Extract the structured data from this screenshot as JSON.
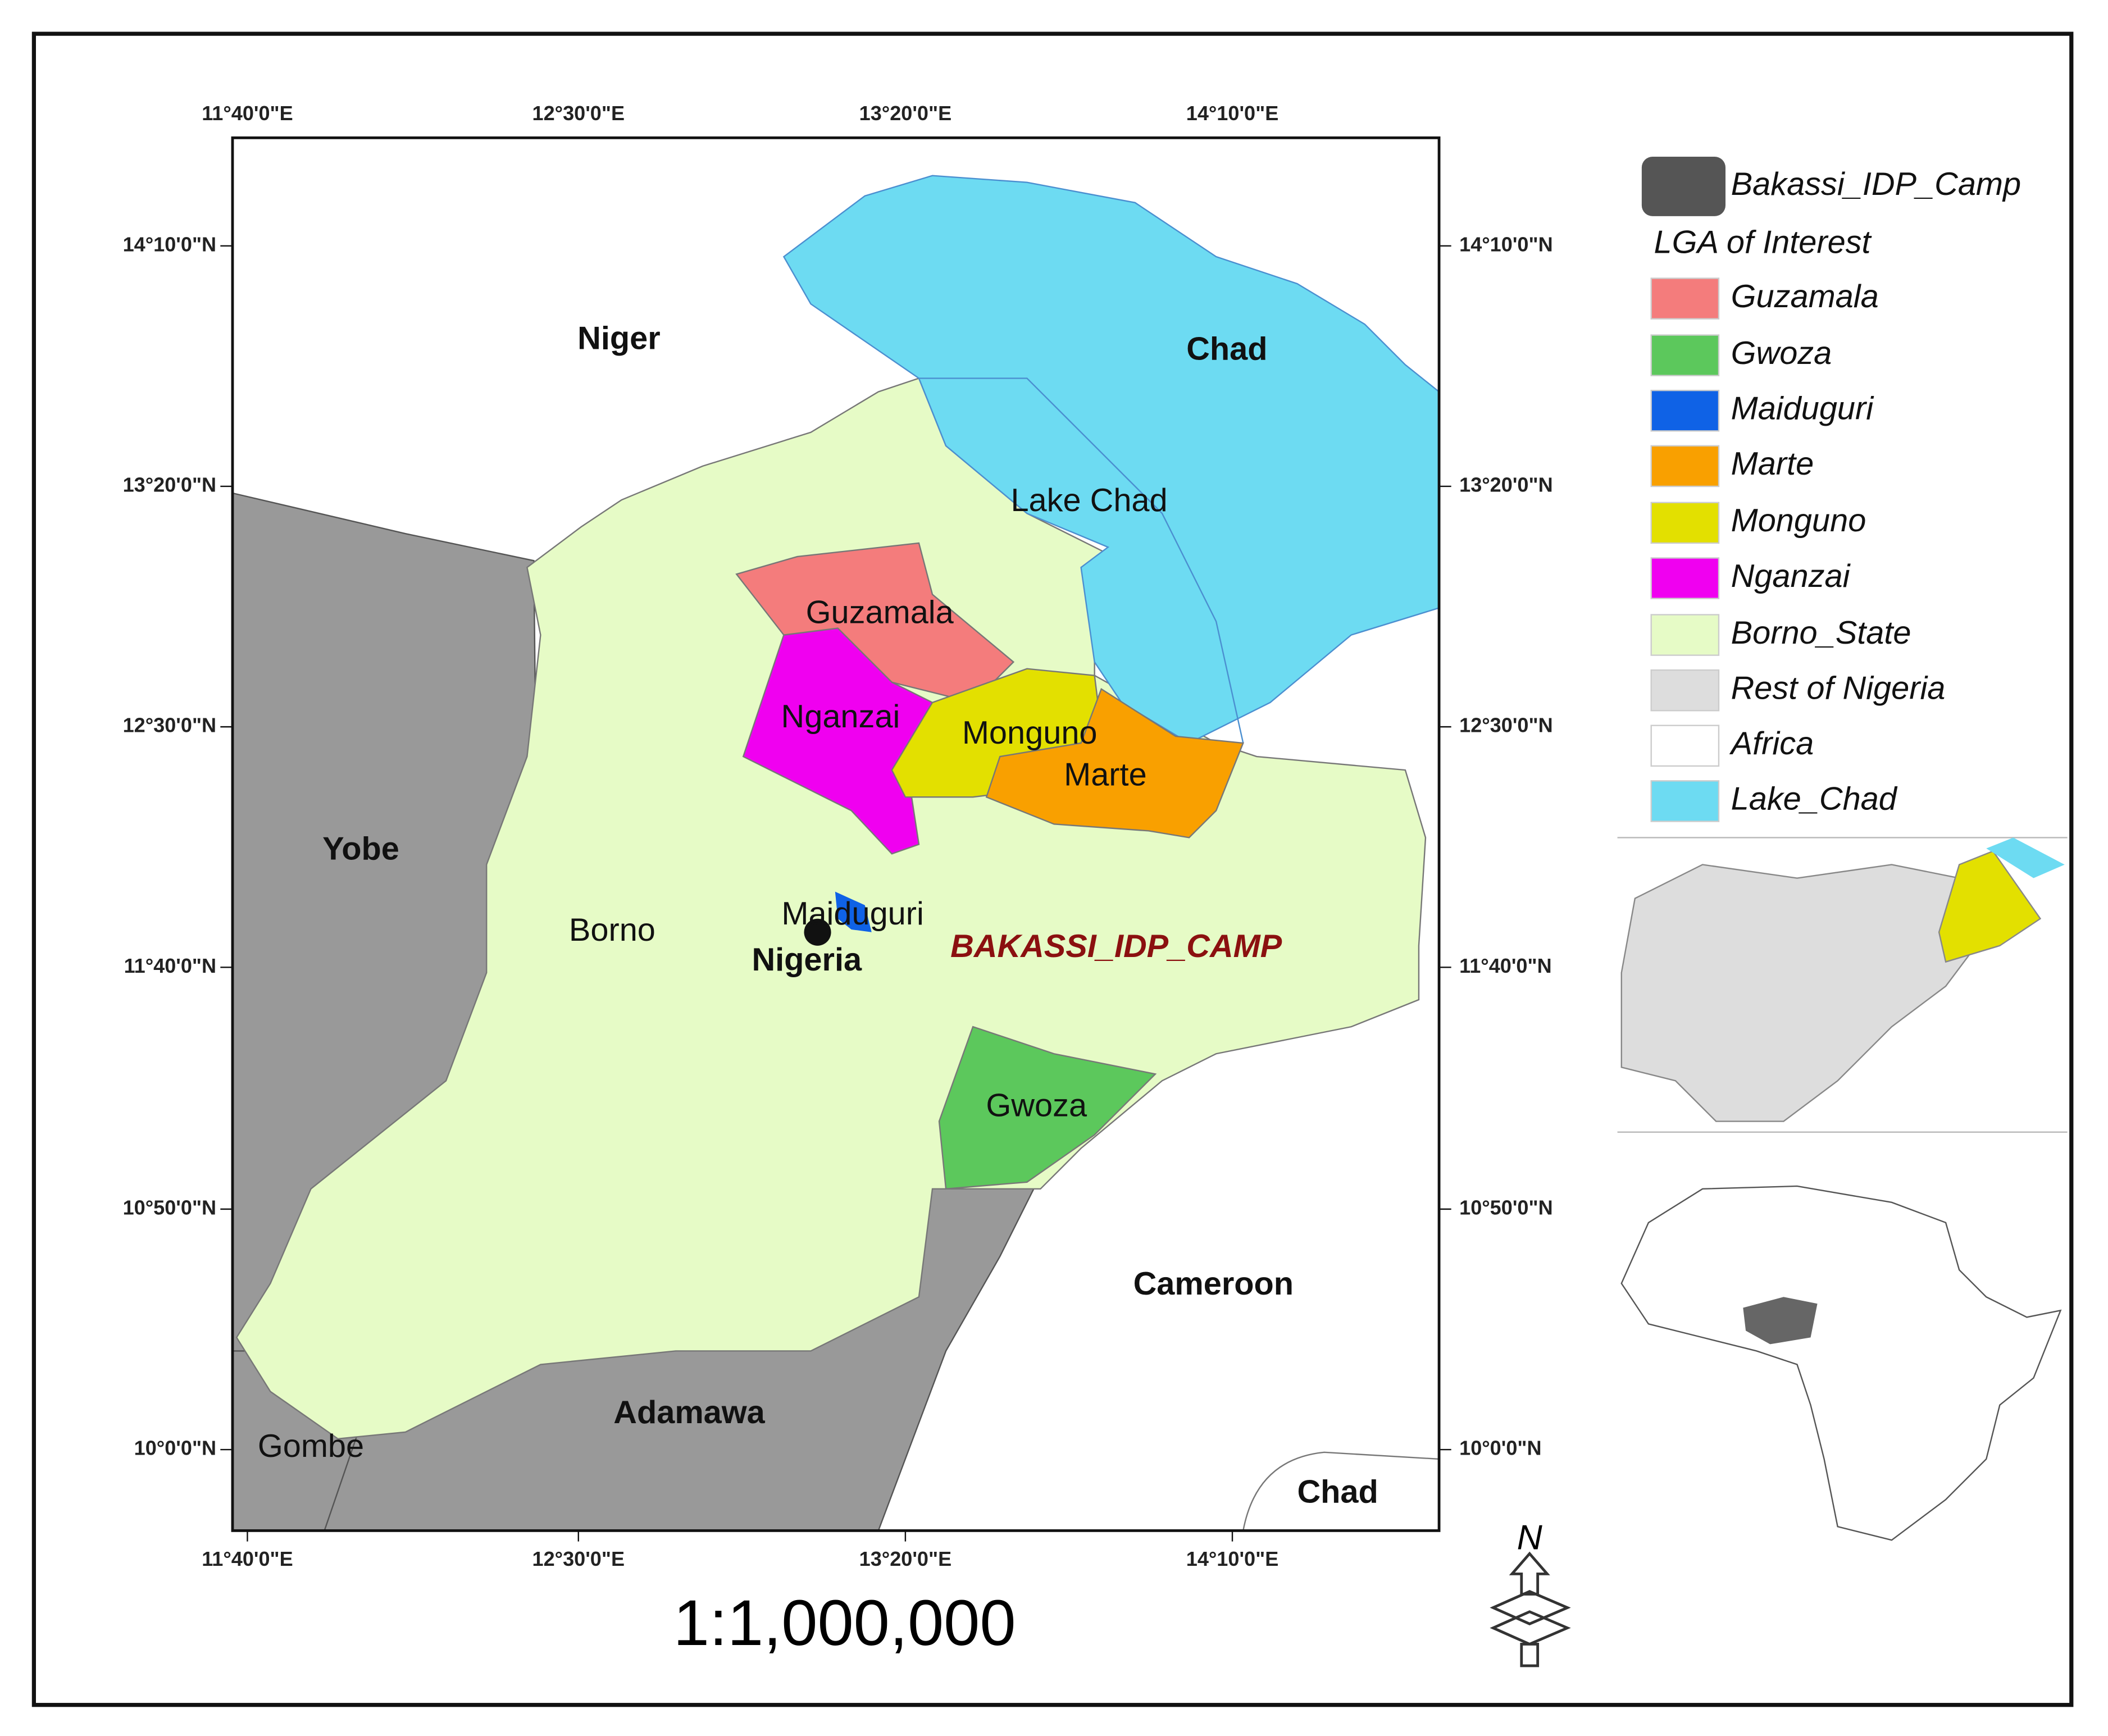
{
  "map": {
    "lon_labels": [
      "11°40'0\"E",
      "12°30'0\"E",
      "13°20'0\"E",
      "14°10'0\"E"
    ],
    "lat_labels": [
      "14°10'0\"N",
      "13°20'0\"N",
      "12°30'0\"N",
      "11°40'0\"N",
      "10°50'0\"N",
      "10°0'0\"N"
    ],
    "places": [
      "Niger",
      "Chad",
      "Lake Chad",
      "Guzamala",
      "Nganzai",
      "Monguno",
      "Marte",
      "Yobe",
      "Borno",
      "Maiduguri",
      "Nigeria",
      "BAKASSI_IDP_CAMP",
      "Gwoza",
      "Cameroon",
      "Adamawa",
      "Gombe",
      "Chad"
    ],
    "legend_heading": "LGA of Interest",
    "legend": [
      {
        "label": "Bakassi_IDP_Camp",
        "color": "#555555"
      },
      {
        "label": "Guzamala",
        "color": "#f47c7c"
      },
      {
        "label": "Gwoza",
        "color": "#5cc85c"
      },
      {
        "label": "Maiduguri",
        "color": "#0f62e6"
      },
      {
        "label": "Marte",
        "color": "#f9a000"
      },
      {
        "label": "Monguno",
        "color": "#e3e000"
      },
      {
        "label": "Nganzai",
        "color": "#f000f0"
      },
      {
        "label": "Borno_State",
        "color": "#e6fbc6"
      },
      {
        "label": "Rest of Nigeria",
        "color": "#dddddd"
      },
      {
        "label": "Africa",
        "color": "#ffffff"
      },
      {
        "label": "Lake_Chad",
        "color": "#6ddbf2"
      }
    ],
    "scale": "1:1,000,000",
    "north": "N"
  }
}
